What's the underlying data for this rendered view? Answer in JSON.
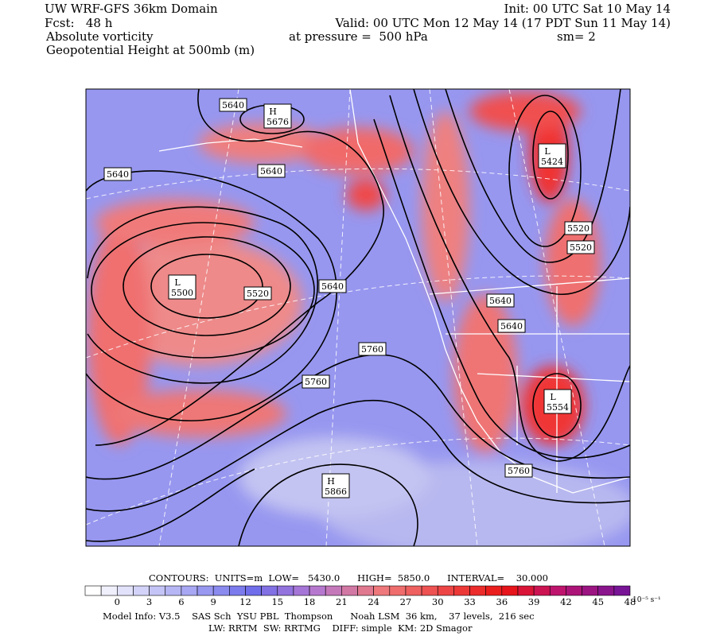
{
  "header": {
    "title": "UW WRF-GFS 36km Domain",
    "init": "Init: 00 UTC Sat 10 May 14",
    "forecast": "Fcst:   48 h",
    "valid": "Valid: 00 UTC Mon 12 May 14 (17 PDT Sun 11 May 14)",
    "field": "Absolute vorticity",
    "pressure": "at pressure =  500 hPa",
    "smoothing": "sm= 2",
    "contour_field": "Geopotential Height at 500mb (m)"
  },
  "map": {
    "contour_labels": [
      "5640",
      "5640",
      "5640",
      "5520",
      "5520",
      "5520",
      "5640",
      "5640",
      "5640",
      "5760",
      "5760",
      "5760"
    ],
    "centers": [
      {
        "symbol": "H",
        "value": "5676"
      },
      {
        "symbol": "L",
        "value": "5424"
      },
      {
        "symbol": "L",
        "value": "5500"
      },
      {
        "symbol": "L",
        "value": "5554"
      },
      {
        "symbol": "H",
        "value": "5866"
      }
    ]
  },
  "footer": {
    "contours": "CONTOURS:  UNITS=m  LOW=   5430.0      HIGH=  5850.0      INTERVAL=    30.000",
    "colorbar_ticks": [
      0,
      3,
      6,
      9,
      12,
      15,
      18,
      21,
      24,
      27,
      30,
      33,
      36,
      39,
      42,
      45,
      48
    ],
    "colorbar_units": "10⁻⁵ s⁻¹",
    "model_info": "Model Info: V3.5    SAS Sch  YSU PBL  Thompson      Noah LSM  36 km,    37 levels,  216 sec",
    "physics": "LW: RRTM  SW: RRTMG    DIFF: simple  KM: 2D Smagor"
  }
}
